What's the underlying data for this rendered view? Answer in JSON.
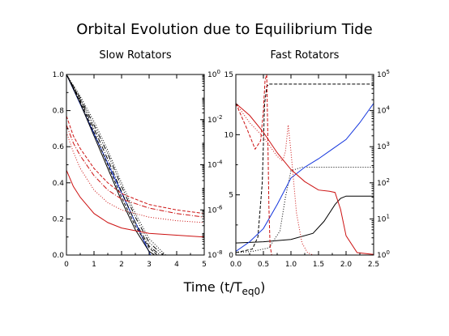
{
  "title": "Orbital Evolution due to Equilibrium Tide",
  "xlabel_prefix": "Time (t/T",
  "xlabel_sub": "eq0",
  "xlabel_suffix": ")",
  "colors": {
    "red": "#cc1111",
    "blue": "#1133dd",
    "black": "#000000"
  },
  "chart_data": [
    {
      "type": "line",
      "subtitle": "Slow Rotators",
      "xlim": [
        0,
        5
      ],
      "ylim": [
        0,
        1
      ],
      "y2lim_log": [
        1e-08,
        1
      ],
      "grid": false,
      "xticks": [
        "0",
        "1",
        "2",
        "3",
        "4",
        "5"
      ],
      "xtick_values": [
        0,
        1,
        2,
        3,
        4,
        5
      ],
      "yticks": [
        "0.0",
        "0.2",
        "0.4",
        "0.6",
        "0.8",
        "1.0"
      ],
      "ytick_values": [
        0,
        0.2,
        0.4,
        0.6,
        0.8,
        1.0
      ],
      "y2ticks": [
        {
          "base": "10",
          "exp": "-8",
          "value": 1e-08
        },
        {
          "base": "10",
          "exp": "-6",
          "value": 1e-06
        },
        {
          "base": "10",
          "exp": "-4",
          "value": 0.0001
        },
        {
          "base": "10",
          "exp": "-2",
          "value": 0.01
        },
        {
          "base": "10",
          "exp": "0",
          "value": 1
        }
      ],
      "series": [
        {
          "color": "blue",
          "dash": "solid",
          "x": [
            0,
            3.05
          ],
          "y": [
            1.0,
            0.0
          ]
        },
        {
          "color": "black",
          "dash": "solid",
          "x": [
            0,
            0.5,
            1.0,
            1.5,
            2.0,
            2.5,
            3.0,
            3.2
          ],
          "y": [
            1.0,
            0.84,
            0.66,
            0.48,
            0.3,
            0.14,
            0.02,
            0.0
          ]
        },
        {
          "color": "black",
          "dash": "4,2",
          "x": [
            0,
            0.5,
            1.0,
            1.5,
            2.0,
            2.5,
            3.0,
            3.3
          ],
          "y": [
            1.0,
            0.85,
            0.68,
            0.5,
            0.32,
            0.16,
            0.04,
            0.0
          ]
        },
        {
          "color": "black",
          "dash": "6,2,1,2",
          "x": [
            0,
            0.5,
            1.0,
            1.5,
            2.0,
            2.5,
            3.0,
            3.4
          ],
          "y": [
            1.0,
            0.86,
            0.7,
            0.53,
            0.35,
            0.18,
            0.05,
            0.0
          ]
        },
        {
          "color": "black",
          "dash": "6,2,1,2,1,2",
          "x": [
            0,
            0.5,
            1.0,
            1.5,
            2.0,
            2.5,
            3.0,
            3.5
          ],
          "y": [
            1.0,
            0.87,
            0.72,
            0.56,
            0.38,
            0.21,
            0.07,
            0.0
          ]
        },
        {
          "color": "black",
          "dash": "1,2",
          "x": [
            0,
            0.5,
            1.0,
            1.5,
            2.0,
            2.5,
            3.0,
            3.6
          ],
          "y": [
            1.0,
            0.88,
            0.74,
            0.58,
            0.4,
            0.23,
            0.09,
            0.0
          ]
        },
        {
          "color": "red",
          "dash": "solid",
          "x": [
            0,
            0.25,
            0.5,
            1.0,
            1.5,
            2.0,
            3.0,
            4.0,
            5.0
          ],
          "y": [
            0.47,
            0.38,
            0.32,
            0.23,
            0.18,
            0.15,
            0.12,
            0.11,
            0.1
          ]
        },
        {
          "color": "red",
          "dash": "1,2",
          "x": [
            0,
            0.25,
            0.5,
            1.0,
            1.5,
            2.0,
            3.0,
            4.0,
            5.0
          ],
          "y": [
            0.68,
            0.57,
            0.48,
            0.36,
            0.29,
            0.25,
            0.21,
            0.19,
            0.18
          ]
        },
        {
          "color": "red",
          "dash": "6,2,1,2",
          "x": [
            0,
            0.25,
            0.5,
            1.0,
            1.5,
            2.0,
            3.0,
            4.0,
            5.0
          ],
          "y": [
            0.72,
            0.62,
            0.55,
            0.44,
            0.36,
            0.31,
            0.26,
            0.23,
            0.21
          ]
        },
        {
          "color": "red",
          "dash": "4,2",
          "x": [
            0,
            0.25,
            0.5,
            1.0,
            1.5,
            2.0,
            3.0,
            4.0,
            5.0
          ],
          "y": [
            0.77,
            0.66,
            0.59,
            0.48,
            0.4,
            0.34,
            0.28,
            0.25,
            0.23
          ]
        }
      ]
    },
    {
      "type": "line",
      "subtitle": "Fast Rotators",
      "xlim": [
        0,
        2.5
      ],
      "ylim": [
        0,
        15
      ],
      "y2lim_log": [
        1,
        100000
      ],
      "grid": false,
      "xticks": [
        "0.0",
        "0.5",
        "1.0",
        "1.5",
        "2.0",
        "2.5"
      ],
      "xtick_values": [
        0,
        0.5,
        1.0,
        1.5,
        2.0,
        2.5
      ],
      "yticks": [
        "0",
        "5",
        "10",
        "15"
      ],
      "ytick_values": [
        0,
        5,
        10,
        15
      ],
      "y2ticks": [
        {
          "base": "10",
          "exp": "0",
          "value": 1
        },
        {
          "base": "10",
          "exp": "1",
          "value": 10
        },
        {
          "base": "10",
          "exp": "2",
          "value": 100
        },
        {
          "base": "10",
          "exp": "3",
          "value": 1000
        },
        {
          "base": "10",
          "exp": "4",
          "value": 10000
        },
        {
          "base": "10",
          "exp": "5",
          "value": 100000
        }
      ],
      "series": [
        {
          "color": "black",
          "dash": "solid",
          "x": [
            0,
            0.5,
            1.0,
            1.4,
            1.6,
            1.8,
            1.9,
            2.0,
            2.5
          ],
          "y": [
            1.0,
            1.1,
            1.3,
            1.8,
            2.8,
            4.2,
            4.7,
            4.9,
            4.9
          ]
        },
        {
          "color": "black",
          "dash": "1,2",
          "x": [
            0,
            0.3,
            0.6,
            0.8,
            0.9,
            1.0,
            1.2,
            1.5,
            2.0,
            2.5
          ],
          "y": [
            0.2,
            0.3,
            0.6,
            2.0,
            4.8,
            7.0,
            7.3,
            7.3,
            7.3,
            7.3
          ]
        },
        {
          "color": "black",
          "dash": "4,2",
          "x": [
            0,
            0.3,
            0.4,
            0.48,
            0.52,
            0.56,
            0.6,
            1.0,
            2.5
          ],
          "y": [
            0.2,
            0.5,
            1.5,
            6.0,
            12.5,
            14.0,
            14.2,
            14.2,
            14.2
          ]
        },
        {
          "color": "blue",
          "dash": "solid",
          "x": [
            0,
            0.25,
            0.5,
            0.75,
            1.0,
            1.25,
            1.5,
            1.75,
            2.0,
            2.25,
            2.5
          ],
          "y": [
            0.3,
            1.1,
            2.2,
            4.2,
            6.4,
            7.3,
            8.0,
            8.8,
            9.6,
            11.0,
            12.6
          ]
        },
        {
          "color": "red",
          "dash": "solid",
          "x": [
            0,
            0.25,
            0.5,
            0.75,
            1.0,
            1.25,
            1.5,
            1.7,
            1.8,
            1.9,
            2.0,
            2.2,
            2.5
          ],
          "y": [
            12.6,
            11.6,
            10.2,
            8.5,
            7.1,
            6.1,
            5.4,
            5.3,
            5.2,
            3.8,
            1.6,
            0.2,
            0.05
          ]
        },
        {
          "color": "red",
          "dash": "4,2",
          "x": [
            0,
            0.2,
            0.35,
            0.45,
            0.5,
            0.53,
            0.56,
            0.58,
            0.6,
            0.62,
            0.65
          ],
          "y": [
            12.6,
            10.5,
            8.8,
            9.5,
            12.0,
            14.5,
            15.0,
            10.0,
            4.0,
            0.8,
            0.0
          ]
        },
        {
          "color": "red",
          "dash": "1,2",
          "x": [
            0,
            0.25,
            0.5,
            0.75,
            0.85,
            0.9,
            0.95,
            1.0,
            1.1,
            1.2,
            1.3,
            1.4
          ],
          "y": [
            12.6,
            11.0,
            9.8,
            8.2,
            7.8,
            8.6,
            10.8,
            8.6,
            3.5,
            1.0,
            0.2,
            0.0
          ]
        }
      ]
    }
  ]
}
